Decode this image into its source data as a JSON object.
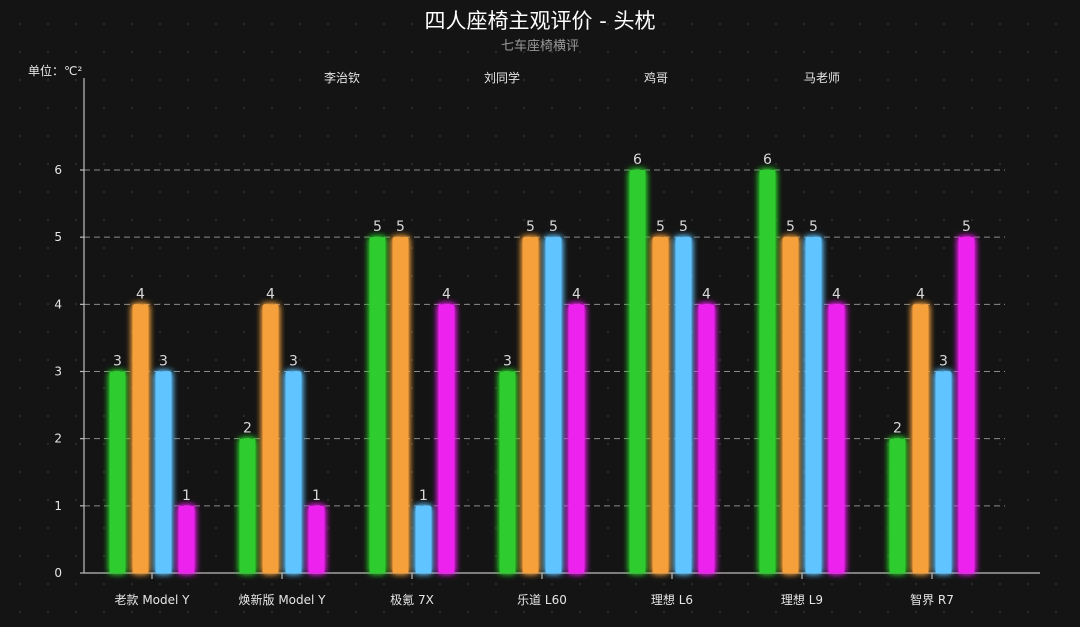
{
  "chart_data": {
    "type": "bar",
    "title": "四人座椅主观评价 - 头枕",
    "subtitle": "七车座椅横评",
    "unit_label": "单位：℃²",
    "categories": [
      "老款 Model Y",
      "焕新版 Model Y",
      "极氪 7X",
      "乐道 L60",
      "理想 L6",
      "理想 L9",
      "智界 R7"
    ],
    "series": [
      {
        "name": "李治钦",
        "color": "#2ecc2e",
        "values": [
          3,
          2,
          5,
          3,
          6,
          6,
          2
        ]
      },
      {
        "name": "刘同学",
        "color": "#f5a03a",
        "values": [
          4,
          4,
          5,
          5,
          5,
          5,
          4
        ]
      },
      {
        "name": "鸡哥",
        "color": "#5ec4ff",
        "values": [
          3,
          3,
          1,
          5,
          5,
          5,
          3
        ]
      },
      {
        "name": "马老师",
        "color": "#ee22ee",
        "values": [
          1,
          1,
          4,
          4,
          4,
          4,
          5
        ]
      }
    ],
    "y_ticks": [
      "0",
      "1",
      "2",
      "3",
      "4",
      "5",
      "6"
    ],
    "ylim": [
      0,
      6
    ],
    "grid": true,
    "legend_position": "top"
  }
}
